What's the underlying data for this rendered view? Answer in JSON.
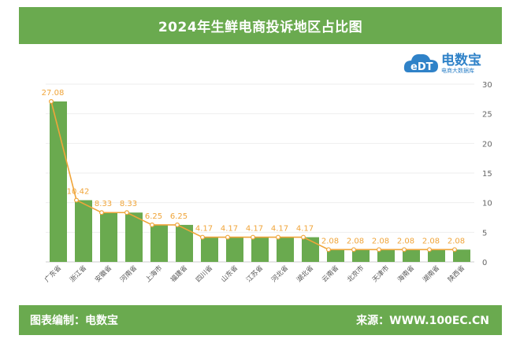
{
  "header": {
    "title": "2024年生鲜电商投诉地区占比图"
  },
  "logo": {
    "badge": "eDT",
    "name": "电数宝",
    "tagline": "电商大数据库"
  },
  "footer": {
    "left": "图表编制：电数宝",
    "right": "来源：WWW.100EC.CN"
  },
  "colors": {
    "banner": "#6aaa4f",
    "bar": "#6aaa4f",
    "line": "#f0a53a",
    "logo": "#2f82c8"
  },
  "chart_data": {
    "type": "bar",
    "categories": [
      "广东省",
      "浙江省",
      "安徽省",
      "河南省",
      "上海市",
      "福建省",
      "四川省",
      "山东省",
      "江苏省",
      "河北省",
      "湖北省",
      "云南省",
      "北京市",
      "天津市",
      "海南省",
      "湖南省",
      "陕西省"
    ],
    "series": [
      {
        "values": [
          27.08,
          10.42,
          8.33,
          8.33,
          6.25,
          6.25,
          4.17,
          4.17,
          4.17,
          4.17,
          4.17,
          2.08,
          2.08,
          2.08,
          2.08,
          2.08,
          2.08
        ]
      }
    ],
    "labels": [
      "27.08",
      "10.42",
      "8.33",
      "8.33",
      "6.25",
      "6.25",
      "4.17",
      "4.17",
      "4.17",
      "4.17",
      "4.17",
      "2.08",
      "2.08",
      "2.08",
      "2.08",
      "2.08",
      "2.08"
    ],
    "y_ticks": [
      "0",
      "5",
      "10",
      "15",
      "20",
      "25",
      "30"
    ],
    "ylim": [
      0,
      30
    ],
    "ylabel_position": "right",
    "grid": true,
    "overlay": "line with markers"
  }
}
